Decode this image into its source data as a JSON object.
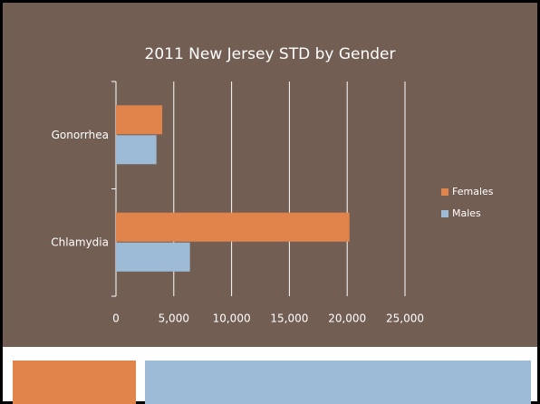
{
  "chart_data": {
    "type": "hbar",
    "title": "2011 New Jersey STD by Gender",
    "categories": [
      "Gonorrhea",
      "Chlamydia"
    ],
    "series": [
      {
        "name": "Females",
        "color": "#e0844b",
        "values": [
          4000,
          20200
        ]
      },
      {
        "name": "Males",
        "color": "#9dbad7",
        "values": [
          3500,
          6400
        ]
      }
    ],
    "xlim": [
      0,
      25000
    ],
    "xticks": [
      0,
      {
        "value": 5000,
        "label": "5,000"
      },
      {
        "value": 10000,
        "label": "10,000"
      },
      {
        "value": 15000,
        "label": "15,000"
      },
      {
        "value": 20000,
        "label": "20,000"
      },
      {
        "value": 25000,
        "label": "25,000"
      }
    ],
    "grid": true,
    "legend": "right"
  }
}
